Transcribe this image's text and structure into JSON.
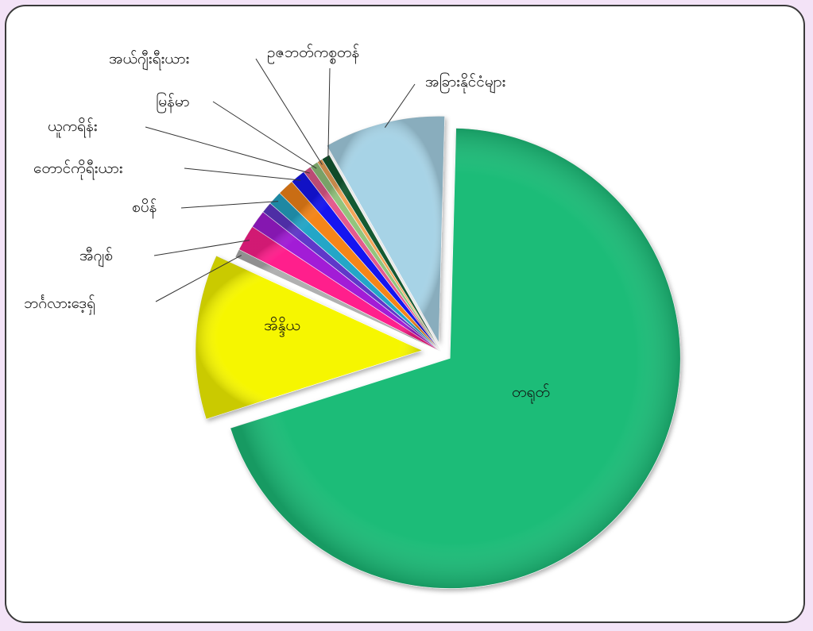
{
  "chart_data": {
    "type": "pie",
    "title": "",
    "unit": "%",
    "legend": "none",
    "slices": [
      {
        "label": "တရုတ်",
        "value": 71.0,
        "color": "#1fbc78",
        "exploded": true
      },
      {
        "label": "အိန္ဒိယ",
        "value": 12.0,
        "color": "#f6f600",
        "exploded": true
      },
      {
        "label": "ဘင်္ဂလားဒေ့ရှ်",
        "value": 0.6,
        "color": "#b0b0b0"
      },
      {
        "label": "အီဂျစ်",
        "value": 1.9,
        "color": "#ff1f8c"
      },
      {
        "label": "",
        "value": 1.3,
        "color": "#a21cd6"
      },
      {
        "label": "",
        "value": 0.8,
        "color": "#5f38c9"
      },
      {
        "label": "စပိန်",
        "value": 1.0,
        "color": "#24a6c7"
      },
      {
        "label": "",
        "value": 1.2,
        "color": "#f58518"
      },
      {
        "label": "တောင်ကိုရီးယား",
        "value": 1.1,
        "color": "#1515f0"
      },
      {
        "label": "ယူကရိန်း",
        "value": 0.6,
        "color": "#e45a8e"
      },
      {
        "label": "မြန်မာ",
        "value": 0.6,
        "color": "#93c47d"
      },
      {
        "label": "အယ်ဂျီးရီးယား",
        "value": 0.4,
        "color": "#f2a65a"
      },
      {
        "label": "ဥဇဘတ်ကစ္စတန်",
        "value": 0.6,
        "color": "#145a32"
      },
      {
        "label": "အခြားနိုင်ငံများ",
        "value": 8.8,
        "color": "#a7d3e6",
        "exploded": true
      }
    ]
  }
}
